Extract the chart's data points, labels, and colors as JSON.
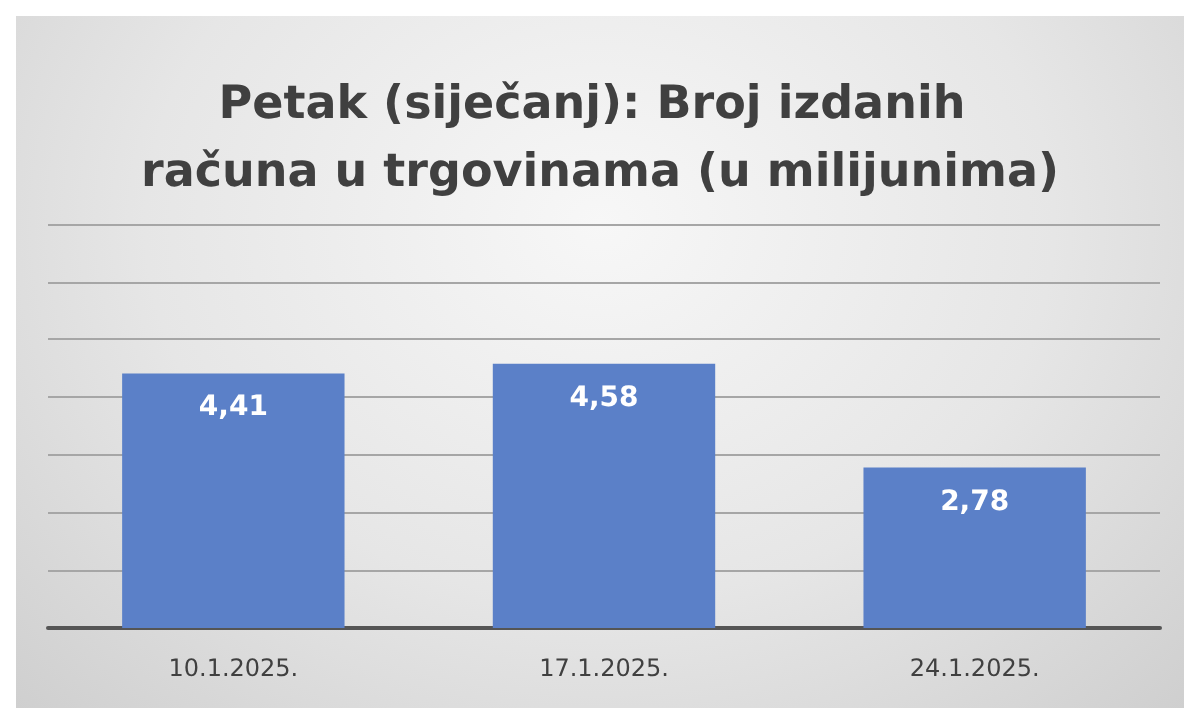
{
  "chart_data": {
    "type": "bar",
    "title": "Petak (siječanj): Broj izdanih računa u trgovinama (u milijunima)",
    "categories": [
      "10.1.2025.",
      "17.1.2025.",
      "24.1.2025."
    ],
    "values": [
      4.41,
      4.58,
      2.78
    ],
    "value_labels": [
      "4,41",
      "4,58",
      "2,78"
    ],
    "color": "#5b80c8",
    "ylim": [
      0,
      7
    ],
    "yticks": [
      {
        "value": 0,
        "label": null
      },
      {
        "value": 1,
        "label": null
      },
      {
        "value": 2,
        "label": null
      },
      {
        "value": 3,
        "label": null
      },
      {
        "value": 4,
        "label": null
      },
      {
        "value": 5,
        "label": null
      },
      {
        "value": 6,
        "label": null
      },
      {
        "value": 7,
        "label": null
      }
    ],
    "tick_labels": "x",
    "grid": "y"
  }
}
